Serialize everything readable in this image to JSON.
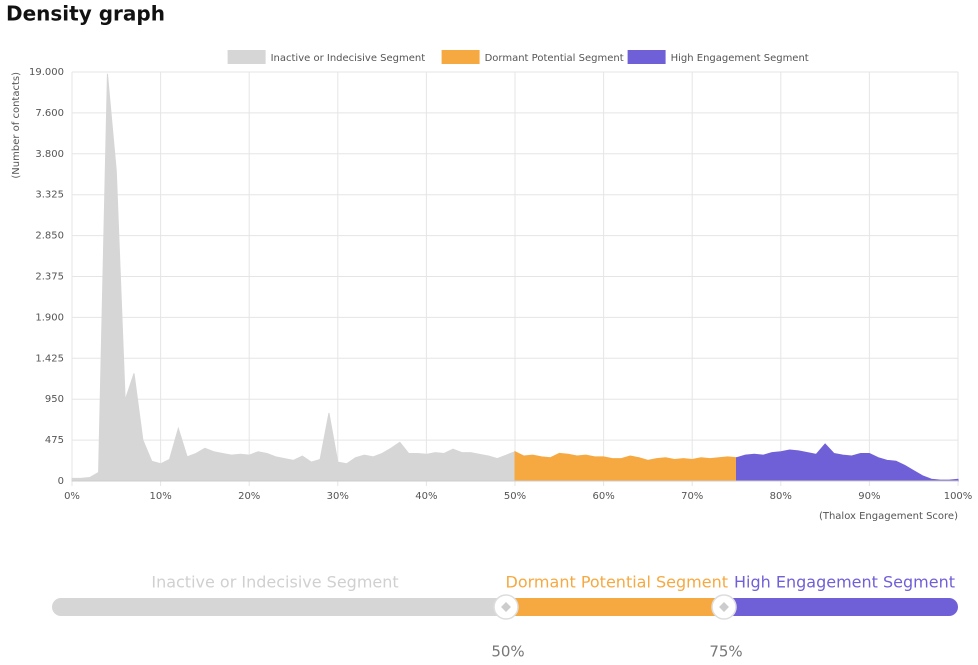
{
  "header": {
    "title": "Density graph"
  },
  "chart_data": {
    "type": "area",
    "x_label": "(Thalox Engagement Score)",
    "y_label": "(Number of contacts)",
    "x": [
      0,
      1,
      2,
      3,
      4,
      5,
      6,
      7,
      8,
      9,
      10,
      11,
      12,
      13,
      14,
      15,
      16,
      17,
      18,
      19,
      20,
      21,
      22,
      23,
      24,
      25,
      26,
      27,
      28,
      29,
      30,
      31,
      32,
      33,
      34,
      35,
      36,
      37,
      38,
      39,
      40,
      41,
      42,
      43,
      44,
      45,
      46,
      47,
      48,
      49,
      50,
      51,
      52,
      53,
      54,
      55,
      56,
      57,
      58,
      59,
      60,
      61,
      62,
      63,
      64,
      65,
      66,
      67,
      68,
      69,
      70,
      71,
      72,
      73,
      74,
      75,
      76,
      77,
      78,
      79,
      80,
      81,
      82,
      83,
      84,
      85,
      86,
      87,
      88,
      89,
      90,
      91,
      92,
      93,
      94,
      95,
      96,
      97,
      98,
      99,
      100
    ],
    "series": [
      {
        "name": "Inactive or Indecisive Segment",
        "color": "#d6d6d6",
        "values": [
          30,
          30,
          40,
          100,
          18500,
          3600,
          940,
          1250,
          475,
          230,
          200,
          250,
          610,
          280,
          320,
          380,
          340,
          320,
          300,
          310,
          300,
          340,
          320,
          280,
          260,
          240,
          290,
          220,
          250,
          790,
          220,
          200,
          270,
          300,
          280,
          320,
          380,
          450,
          320,
          320,
          310,
          330,
          320,
          370,
          330,
          330,
          310,
          290,
          260,
          300,
          340,
          null,
          null,
          null,
          null,
          null,
          null,
          null,
          null,
          null,
          null,
          null,
          null,
          null,
          null,
          null,
          null,
          null,
          null,
          null,
          null,
          null,
          null,
          null,
          null,
          null,
          null,
          null,
          null,
          null,
          null,
          null,
          null,
          null,
          null,
          null,
          null,
          null,
          null,
          null,
          null,
          null,
          null,
          null,
          null,
          null,
          null,
          null,
          null,
          null,
          null
        ]
      },
      {
        "name": "Dormant Potential Segment",
        "color": "#f6a941",
        "values": [
          null,
          null,
          null,
          null,
          null,
          null,
          null,
          null,
          null,
          null,
          null,
          null,
          null,
          null,
          null,
          null,
          null,
          null,
          null,
          null,
          null,
          null,
          null,
          null,
          null,
          null,
          null,
          null,
          null,
          null,
          null,
          null,
          null,
          null,
          null,
          null,
          null,
          null,
          null,
          null,
          null,
          null,
          null,
          null,
          null,
          null,
          null,
          null,
          null,
          null,
          340,
          290,
          300,
          280,
          270,
          320,
          310,
          290,
          300,
          280,
          280,
          260,
          260,
          290,
          270,
          240,
          260,
          270,
          250,
          260,
          250,
          270,
          260,
          270,
          280,
          270,
          null,
          null,
          null,
          null,
          null,
          null,
          null,
          null,
          null,
          null,
          null,
          null,
          null,
          null,
          null,
          null,
          null,
          null,
          null,
          null,
          null,
          null,
          null,
          null,
          null
        ]
      },
      {
        "name": "High Engagement Segment",
        "color": "#7060d8",
        "values": [
          null,
          null,
          null,
          null,
          null,
          null,
          null,
          null,
          null,
          null,
          null,
          null,
          null,
          null,
          null,
          null,
          null,
          null,
          null,
          null,
          null,
          null,
          null,
          null,
          null,
          null,
          null,
          null,
          null,
          null,
          null,
          null,
          null,
          null,
          null,
          null,
          null,
          null,
          null,
          null,
          null,
          null,
          null,
          null,
          null,
          null,
          null,
          null,
          null,
          null,
          null,
          null,
          null,
          null,
          null,
          null,
          null,
          null,
          null,
          null,
          null,
          null,
          null,
          null,
          null,
          null,
          null,
          null,
          null,
          null,
          null,
          null,
          null,
          null,
          null,
          270,
          300,
          310,
          300,
          330,
          340,
          360,
          350,
          330,
          310,
          430,
          320,
          300,
          290,
          320,
          320,
          270,
          240,
          230,
          180,
          120,
          60,
          20,
          10,
          10,
          20
        ]
      }
    ],
    "xlim": [
      0,
      100
    ],
    "xticks": [
      {
        "value": 0,
        "label": "0%"
      },
      {
        "value": 10,
        "label": "10%"
      },
      {
        "value": 20,
        "label": "20%"
      },
      {
        "value": 30,
        "label": "30%"
      },
      {
        "value": 40,
        "label": "40%"
      },
      {
        "value": 50,
        "label": "50%"
      },
      {
        "value": 60,
        "label": "60%"
      },
      {
        "value": 70,
        "label": "70%"
      },
      {
        "value": 80,
        "label": "80%"
      },
      {
        "value": 90,
        "label": "90%"
      },
      {
        "value": 100,
        "label": "100%"
      }
    ],
    "ylim": [
      0,
      19000
    ],
    "yticks": [
      0,
      475,
      950,
      {
        "value": 1425,
        "label": "1.425"
      },
      {
        "value": 1900,
        "label": "1.900"
      },
      {
        "value": 2375,
        "label": "2.375"
      },
      {
        "value": 2850,
        "label": "2.850"
      },
      {
        "value": 3325,
        "label": "3.325"
      },
      {
        "value": 3800,
        "label": "3.800"
      },
      {
        "value": 7600,
        "label": "7.600"
      },
      {
        "value": 19000,
        "label": "19.000"
      }
    ],
    "grid": true,
    "legend": "top"
  },
  "slider": {
    "handles": [
      {
        "value": 50,
        "label": "50%"
      },
      {
        "value": 75,
        "label": "75%"
      }
    ]
  }
}
